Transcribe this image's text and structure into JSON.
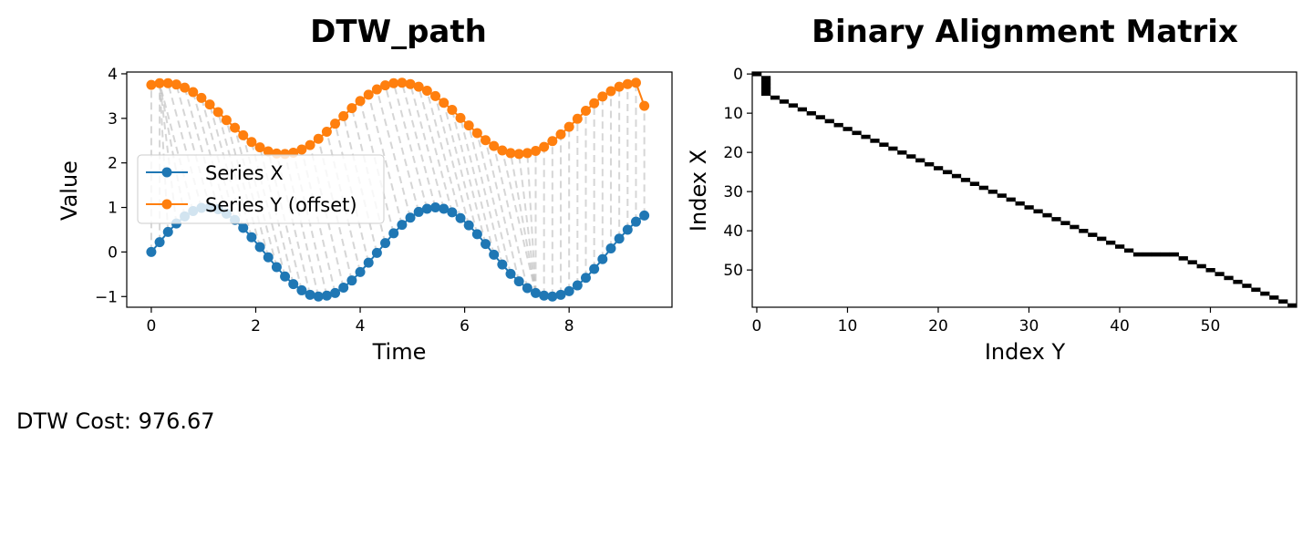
{
  "cost_text": "DTW Cost: 976.67",
  "chart_data": [
    {
      "type": "line",
      "title": "DTW_path",
      "xlabel": "Time",
      "ylabel": "Value",
      "xlim": [
        -0.47,
        9.97
      ],
      "ylim": [
        -1.24,
        4.04
      ],
      "xticks": [
        0,
        2,
        4,
        6,
        8
      ],
      "yticks": [
        -1,
        0,
        1,
        2,
        3,
        4
      ],
      "xtick_labels": [
        "0",
        "2",
        "4",
        "6",
        "8"
      ],
      "ytick_labels": [
        "−1",
        "0",
        "1",
        "2",
        "3",
        "4"
      ],
      "grid": false,
      "legend_position": "center-left",
      "x": [
        0.0,
        0.16,
        0.32,
        0.48,
        0.64,
        0.8,
        0.96,
        1.12,
        1.28,
        1.44,
        1.6,
        1.76,
        1.92,
        2.08,
        2.24,
        2.4,
        2.56,
        2.72,
        2.88,
        3.04,
        3.2,
        3.36,
        3.52,
        3.68,
        3.84,
        4.0,
        4.16,
        4.32,
        4.48,
        4.64,
        4.8,
        4.96,
        5.12,
        5.28,
        5.44,
        5.6,
        5.76,
        5.92,
        6.08,
        6.24,
        6.4,
        6.56,
        6.72,
        6.88,
        7.04,
        7.2,
        7.36,
        7.52,
        7.68,
        7.84,
        8.0,
        8.16,
        8.32,
        8.48,
        8.64,
        8.8,
        8.96,
        9.12,
        9.28,
        9.44
      ],
      "series": [
        {
          "name": "Series X",
          "color": "#1f77b4",
          "values": [
            0.0,
            0.22,
            0.45,
            0.64,
            0.8,
            0.92,
            0.99,
            1.0,
            0.96,
            0.86,
            0.72,
            0.54,
            0.33,
            0.11,
            -0.12,
            -0.34,
            -0.55,
            -0.72,
            -0.86,
            -0.96,
            -1.0,
            -0.98,
            -0.92,
            -0.8,
            -0.64,
            -0.45,
            -0.24,
            -0.02,
            0.2,
            0.42,
            0.61,
            0.77,
            0.9,
            0.97,
            1.0,
            0.97,
            0.89,
            0.76,
            0.6,
            0.4,
            0.18,
            -0.06,
            -0.28,
            -0.49,
            -0.66,
            -0.81,
            -0.92,
            -0.98,
            -1.0,
            -0.96,
            -0.88,
            -0.75,
            -0.58,
            -0.38,
            -0.16,
            0.08,
            0.3,
            0.5,
            0.68,
            0.82
          ]
        },
        {
          "name": "Series Y (offset)",
          "color": "#ff7f0e",
          "values": [
            3.75,
            3.79,
            3.79,
            3.76,
            3.69,
            3.59,
            3.46,
            3.31,
            3.14,
            2.96,
            2.79,
            2.62,
            2.47,
            2.35,
            2.26,
            2.21,
            2.2,
            2.23,
            2.3,
            2.4,
            2.54,
            2.7,
            2.88,
            3.05,
            3.23,
            3.39,
            3.53,
            3.65,
            3.74,
            3.79,
            3.8,
            3.77,
            3.71,
            3.62,
            3.5,
            3.35,
            3.19,
            3.01,
            2.84,
            2.67,
            2.51,
            2.38,
            2.28,
            2.22,
            2.2,
            2.22,
            2.27,
            2.36,
            2.49,
            2.64,
            2.81,
            2.99,
            3.17,
            3.34,
            3.49,
            3.61,
            3.71,
            3.77,
            3.8,
            3.28
          ]
        }
      ]
    },
    {
      "type": "heatmap",
      "title": "Binary Alignment Matrix",
      "xlabel": "Index Y",
      "ylabel": "Index X",
      "xlim": [
        -0.5,
        59.5
      ],
      "ylim": [
        59.5,
        -0.5
      ],
      "xticks": [
        0,
        10,
        20,
        30,
        40,
        50
      ],
      "yticks": [
        0,
        10,
        20,
        30,
        40,
        50
      ],
      "colormap": [
        "#ffffff",
        "#000000"
      ],
      "path": [
        [
          0,
          0
        ],
        [
          1,
          1
        ],
        [
          2,
          1
        ],
        [
          3,
          1
        ],
        [
          4,
          1
        ],
        [
          5,
          1
        ],
        [
          6,
          2
        ],
        [
          7,
          3
        ],
        [
          8,
          4
        ],
        [
          9,
          5
        ],
        [
          10,
          6
        ],
        [
          11,
          7
        ],
        [
          12,
          8
        ],
        [
          13,
          9
        ],
        [
          14,
          10
        ],
        [
          15,
          11
        ],
        [
          16,
          12
        ],
        [
          17,
          13
        ],
        [
          18,
          14
        ],
        [
          19,
          15
        ],
        [
          20,
          16
        ],
        [
          21,
          17
        ],
        [
          22,
          18
        ],
        [
          23,
          19
        ],
        [
          24,
          20
        ],
        [
          25,
          21
        ],
        [
          26,
          22
        ],
        [
          27,
          23
        ],
        [
          28,
          24
        ],
        [
          29,
          25
        ],
        [
          30,
          26
        ],
        [
          31,
          27
        ],
        [
          32,
          28
        ],
        [
          33,
          29
        ],
        [
          34,
          30
        ],
        [
          35,
          31
        ],
        [
          36,
          32
        ],
        [
          37,
          33
        ],
        [
          38,
          34
        ],
        [
          39,
          35
        ],
        [
          40,
          36
        ],
        [
          41,
          37
        ],
        [
          42,
          38
        ],
        [
          43,
          39
        ],
        [
          44,
          40
        ],
        [
          45,
          41
        ],
        [
          46,
          42
        ],
        [
          46,
          43
        ],
        [
          46,
          44
        ],
        [
          46,
          45
        ],
        [
          46,
          46
        ],
        [
          47,
          47
        ],
        [
          48,
          48
        ],
        [
          49,
          49
        ],
        [
          50,
          50
        ],
        [
          51,
          51
        ],
        [
          52,
          52
        ],
        [
          53,
          53
        ],
        [
          54,
          54
        ],
        [
          55,
          55
        ],
        [
          56,
          56
        ],
        [
          57,
          57
        ],
        [
          58,
          58
        ],
        [
          59,
          59
        ]
      ]
    }
  ]
}
